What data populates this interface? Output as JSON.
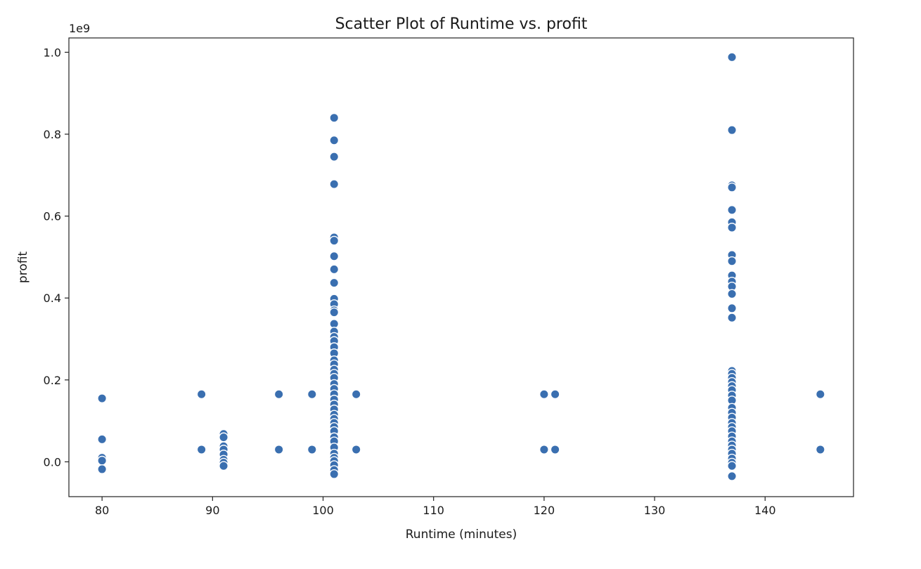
{
  "chart_data": {
    "type": "scatter",
    "title": "Scatter Plot of Runtime vs. profit",
    "xlabel": "Runtime (minutes)",
    "ylabel": "profit",
    "y_offset_label": "1e9",
    "xlim": [
      77,
      148
    ],
    "ylim": [
      -0.085,
      1.035
    ],
    "xticks": [
      80,
      90,
      100,
      110,
      120,
      130,
      140
    ],
    "yticks": [
      0.0,
      0.2,
      0.4,
      0.6,
      0.8,
      1.0
    ],
    "xtick_labels": [
      "80",
      "90",
      "100",
      "110",
      "120",
      "130",
      "140"
    ],
    "ytick_labels": [
      "0.0",
      "0.2",
      "0.4",
      "0.6",
      "0.8",
      "1.0"
    ],
    "grid": false,
    "marker_color": "#3a6fb0",
    "points": [
      {
        "x": 80,
        "y": 0.155
      },
      {
        "x": 80,
        "y": 0.055
      },
      {
        "x": 80,
        "y": 0.01
      },
      {
        "x": 80,
        "y": 0.003
      },
      {
        "x": 80,
        "y": -0.018
      },
      {
        "x": 89,
        "y": 0.165
      },
      {
        "x": 89,
        "y": 0.03
      },
      {
        "x": 91,
        "y": 0.068
      },
      {
        "x": 91,
        "y": 0.06
      },
      {
        "x": 91,
        "y": 0.038
      },
      {
        "x": 91,
        "y": 0.03
      },
      {
        "x": 91,
        "y": 0.018
      },
      {
        "x": 91,
        "y": 0.005
      },
      {
        "x": 91,
        "y": -0.002
      },
      {
        "x": 91,
        "y": -0.01
      },
      {
        "x": 96,
        "y": 0.165
      },
      {
        "x": 96,
        "y": 0.03
      },
      {
        "x": 99,
        "y": 0.165
      },
      {
        "x": 99,
        "y": 0.03
      },
      {
        "x": 101,
        "y": 0.84
      },
      {
        "x": 101,
        "y": 0.785
      },
      {
        "x": 101,
        "y": 0.745
      },
      {
        "x": 101,
        "y": 0.678
      },
      {
        "x": 101,
        "y": 0.548
      },
      {
        "x": 101,
        "y": 0.54
      },
      {
        "x": 101,
        "y": 0.502
      },
      {
        "x": 101,
        "y": 0.47
      },
      {
        "x": 101,
        "y": 0.437
      },
      {
        "x": 101,
        "y": 0.398
      },
      {
        "x": 101,
        "y": 0.385
      },
      {
        "x": 101,
        "y": 0.37
      },
      {
        "x": 101,
        "y": 0.365
      },
      {
        "x": 101,
        "y": 0.337
      },
      {
        "x": 101,
        "y": 0.318
      },
      {
        "x": 101,
        "y": 0.305
      },
      {
        "x": 101,
        "y": 0.295
      },
      {
        "x": 101,
        "y": 0.28
      },
      {
        "x": 101,
        "y": 0.265
      },
      {
        "x": 101,
        "y": 0.248
      },
      {
        "x": 101,
        "y": 0.238
      },
      {
        "x": 101,
        "y": 0.225
      },
      {
        "x": 101,
        "y": 0.215
      },
      {
        "x": 101,
        "y": 0.205
      },
      {
        "x": 101,
        "y": 0.19
      },
      {
        "x": 101,
        "y": 0.178
      },
      {
        "x": 101,
        "y": 0.165
      },
      {
        "x": 101,
        "y": 0.152
      },
      {
        "x": 101,
        "y": 0.14
      },
      {
        "x": 101,
        "y": 0.128
      },
      {
        "x": 101,
        "y": 0.115
      },
      {
        "x": 101,
        "y": 0.105
      },
      {
        "x": 101,
        "y": 0.095
      },
      {
        "x": 101,
        "y": 0.085
      },
      {
        "x": 101,
        "y": 0.075
      },
      {
        "x": 101,
        "y": 0.06
      },
      {
        "x": 101,
        "y": 0.05
      },
      {
        "x": 101,
        "y": 0.035
      },
      {
        "x": 101,
        "y": 0.02
      },
      {
        "x": 101,
        "y": 0.01
      },
      {
        "x": 101,
        "y": 0.002
      },
      {
        "x": 101,
        "y": -0.008
      },
      {
        "x": 101,
        "y": -0.02
      },
      {
        "x": 101,
        "y": -0.03
      },
      {
        "x": 103,
        "y": 0.165
      },
      {
        "x": 103,
        "y": 0.03
      },
      {
        "x": 120,
        "y": 0.165
      },
      {
        "x": 120,
        "y": 0.03
      },
      {
        "x": 121,
        "y": 0.165
      },
      {
        "x": 121,
        "y": 0.03
      },
      {
        "x": 137,
        "y": 0.988
      },
      {
        "x": 137,
        "y": 0.81
      },
      {
        "x": 137,
        "y": 0.675
      },
      {
        "x": 137,
        "y": 0.67
      },
      {
        "x": 137,
        "y": 0.615
      },
      {
        "x": 137,
        "y": 0.585
      },
      {
        "x": 137,
        "y": 0.572
      },
      {
        "x": 137,
        "y": 0.505
      },
      {
        "x": 137,
        "y": 0.49
      },
      {
        "x": 137,
        "y": 0.455
      },
      {
        "x": 137,
        "y": 0.44
      },
      {
        "x": 137,
        "y": 0.428
      },
      {
        "x": 137,
        "y": 0.41
      },
      {
        "x": 137,
        "y": 0.375
      },
      {
        "x": 137,
        "y": 0.352
      },
      {
        "x": 137,
        "y": 0.222
      },
      {
        "x": 137,
        "y": 0.215
      },
      {
        "x": 137,
        "y": 0.205
      },
      {
        "x": 137,
        "y": 0.195
      },
      {
        "x": 137,
        "y": 0.185
      },
      {
        "x": 137,
        "y": 0.175
      },
      {
        "x": 137,
        "y": 0.162
      },
      {
        "x": 137,
        "y": 0.15
      },
      {
        "x": 137,
        "y": 0.132
      },
      {
        "x": 137,
        "y": 0.12
      },
      {
        "x": 137,
        "y": 0.108
      },
      {
        "x": 137,
        "y": 0.095
      },
      {
        "x": 137,
        "y": 0.085
      },
      {
        "x": 137,
        "y": 0.075
      },
      {
        "x": 137,
        "y": 0.062
      },
      {
        "x": 137,
        "y": 0.05
      },
      {
        "x": 137,
        "y": 0.04
      },
      {
        "x": 137,
        "y": 0.03
      },
      {
        "x": 137,
        "y": 0.02
      },
      {
        "x": 137,
        "y": 0.008
      },
      {
        "x": 137,
        "y": -0.002
      },
      {
        "x": 137,
        "y": -0.01
      },
      {
        "x": 137,
        "y": -0.035
      },
      {
        "x": 145,
        "y": 0.165
      },
      {
        "x": 145,
        "y": 0.03
      }
    ]
  }
}
